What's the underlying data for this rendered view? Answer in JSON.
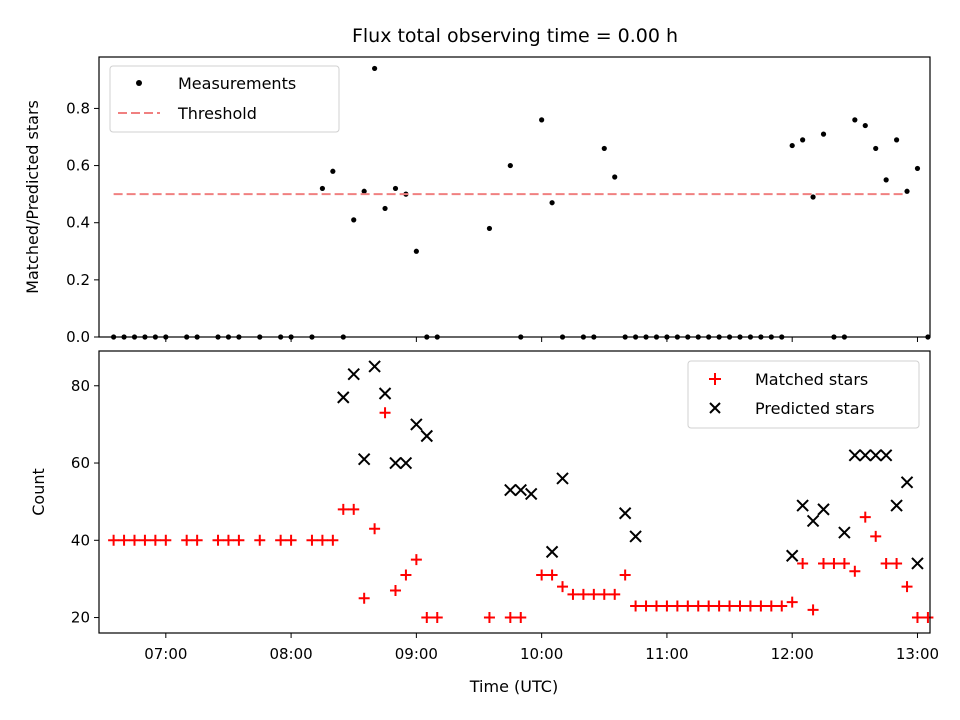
{
  "chart_data": [
    {
      "type": "scatter",
      "title": "Flux total observing time = 0.00 h",
      "xlabel": "",
      "ylabel": "Matched/Predicted stars",
      "xlim": [
        "06:28",
        "13:06"
      ],
      "ylim": [
        0,
        0.98
      ],
      "yticks": [
        0.0,
        0.2,
        0.4,
        0.6,
        0.8
      ],
      "xticks": [
        "07:00",
        "08:00",
        "09:00",
        "10:00",
        "11:00",
        "12:00",
        "13:00"
      ],
      "grid": false,
      "legend": {
        "placement": "top-left",
        "entries": [
          "Measurements",
          "Threshold"
        ]
      },
      "colors": {
        "measurements": "#000000",
        "threshold": "#f08080"
      },
      "series": [
        {
          "name": "Measurements",
          "kind": "points",
          "x": [
            "06:35",
            "06:40",
            "06:45",
            "06:50",
            "06:55",
            "07:00",
            "07:10",
            "07:15",
            "07:25",
            "07:30",
            "07:35",
            "07:45",
            "07:55",
            "08:00",
            "08:10",
            "08:15",
            "08:20",
            "08:25",
            "08:30",
            "08:35",
            "08:40",
            "08:45",
            "08:50",
            "08:55",
            "09:00",
            "09:05",
            "09:10",
            "09:35",
            "09:45",
            "09:50",
            "10:00",
            "10:05",
            "10:10",
            "10:20",
            "10:25",
            "10:30",
            "10:35",
            "10:40",
            "10:45",
            "10:50",
            "10:55",
            "11:00",
            "11:05",
            "11:10",
            "11:15",
            "11:20",
            "11:25",
            "11:30",
            "11:35",
            "11:40",
            "11:45",
            "11:50",
            "11:55",
            "12:00",
            "12:05",
            "12:10",
            "12:15",
            "12:20",
            "12:25",
            "12:30",
            "12:35",
            "12:40",
            "12:45",
            "12:50",
            "12:55",
            "13:00",
            "13:05"
          ],
          "y": [
            0,
            0,
            0,
            0,
            0,
            0,
            0,
            0,
            0,
            0,
            0,
            0,
            0,
            0,
            0,
            0.52,
            0.58,
            0,
            0.41,
            0.51,
            0.94,
            0.45,
            0.52,
            0.5,
            0.3,
            0,
            0,
            0.38,
            0.6,
            0,
            0.76,
            0.47,
            0,
            0,
            0,
            0.66,
            0.56,
            0,
            0,
            0,
            0,
            0,
            0,
            0,
            0,
            0,
            0,
            0,
            0,
            0,
            0,
            0,
            0,
            0.67,
            0.69,
            0.49,
            0.71,
            0,
            0,
            0.76,
            0.74,
            0.66,
            0.55,
            0.69,
            0.51,
            0.59,
            0
          ]
        },
        {
          "name": "Threshold",
          "kind": "dashed-line",
          "x": [
            "06:35",
            "12:54"
          ],
          "y": [
            0.5,
            0.5
          ]
        }
      ]
    },
    {
      "type": "scatter",
      "title": "",
      "xlabel": "Time (UTC)",
      "ylabel": "Count",
      "xlim": [
        "06:28",
        "13:06"
      ],
      "ylim": [
        16,
        89
      ],
      "yticks": [
        20,
        40,
        60,
        80
      ],
      "xticks": [
        "07:00",
        "08:00",
        "09:00",
        "10:00",
        "11:00",
        "12:00",
        "13:00"
      ],
      "grid": false,
      "legend": {
        "placement": "top-right",
        "entries": [
          "Matched stars",
          "Predicted stars"
        ]
      },
      "colors": {
        "matched": "#ff0000",
        "predicted": "#000000"
      },
      "series": [
        {
          "name": "Matched stars",
          "marker": "plus",
          "x": [
            "06:35",
            "06:40",
            "06:45",
            "06:50",
            "06:55",
            "07:00",
            "07:10",
            "07:15",
            "07:25",
            "07:30",
            "07:35",
            "07:45",
            "07:55",
            "08:00",
            "08:10",
            "08:15",
            "08:20",
            "08:25",
            "08:30",
            "08:35",
            "08:40",
            "08:45",
            "08:50",
            "08:55",
            "09:00",
            "09:05",
            "09:10",
            "09:35",
            "09:45",
            "09:50",
            "10:00",
            "10:05",
            "10:10",
            "10:15",
            "10:20",
            "10:25",
            "10:30",
            "10:35",
            "10:40",
            "10:45",
            "10:50",
            "10:55",
            "11:00",
            "11:05",
            "11:10",
            "11:15",
            "11:20",
            "11:25",
            "11:30",
            "11:35",
            "11:40",
            "11:45",
            "11:50",
            "11:55",
            "12:00",
            "12:05",
            "12:10",
            "12:15",
            "12:20",
            "12:25",
            "12:30",
            "12:35",
            "12:40",
            "12:45",
            "12:50",
            "12:55",
            "13:00",
            "13:05"
          ],
          "y": [
            40,
            40,
            40,
            40,
            40,
            40,
            40,
            40,
            40,
            40,
            40,
            40,
            40,
            40,
            40,
            40,
            40,
            48,
            48,
            25,
            43,
            73,
            27,
            31,
            35,
            20,
            20,
            20,
            20,
            20,
            31,
            31,
            28,
            26,
            26,
            26,
            26,
            26,
            31,
            23,
            23,
            23,
            23,
            23,
            23,
            23,
            23,
            23,
            23,
            23,
            23,
            23,
            23,
            23,
            24,
            34,
            22,
            34,
            34,
            34,
            32,
            46,
            41,
            34,
            34,
            28,
            20,
            20
          ]
        },
        {
          "name": "Predicted stars",
          "marker": "x",
          "x": [
            "08:25",
            "08:30",
            "08:35",
            "08:40",
            "08:45",
            "08:50",
            "08:55",
            "09:00",
            "09:05",
            "09:45",
            "09:50",
            "09:55",
            "10:05",
            "10:10",
            "10:40",
            "10:45",
            "12:00",
            "12:05",
            "12:10",
            "12:15",
            "12:25",
            "12:30",
            "12:35",
            "12:40",
            "12:45",
            "12:50",
            "12:55",
            "13:00"
          ],
          "y": [
            77,
            83,
            61,
            85,
            78,
            60,
            60,
            70,
            67,
            53,
            53,
            52,
            37,
            56,
            47,
            41,
            36,
            49,
            45,
            48,
            42,
            62,
            62,
            62,
            62,
            49,
            55,
            34
          ]
        }
      ]
    }
  ]
}
